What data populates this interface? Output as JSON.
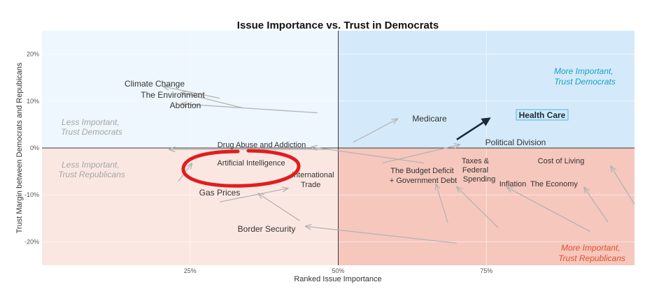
{
  "chart_data": {
    "type": "scatter",
    "title": "Issue Importance vs. Trust in Democrats",
    "xlabel": "Ranked Issue Importance",
    "ylabel": "Trust Margin between Democrats and Repubicans",
    "xlim": [
      0,
      100
    ],
    "ylim": [
      -25,
      25
    ],
    "x_ticks": [
      {
        "value": 25,
        "label": "25%"
      },
      {
        "value": 50,
        "label": "50%"
      },
      {
        "value": 75,
        "label": "75%"
      }
    ],
    "y_ticks": [
      {
        "value": 20,
        "label": "20%"
      },
      {
        "value": 10,
        "label": "10%"
      },
      {
        "value": 0,
        "label": "0%"
      },
      {
        "value": -10,
        "label": "-10%"
      },
      {
        "value": -20,
        "label": "-20%"
      }
    ],
    "quadrant_labels": {
      "top_left": [
        "Less Important,",
        "Trust Democrats"
      ],
      "top_right": [
        "More Important,",
        "Trust Democrats"
      ],
      "bottom_left": [
        "Less Important,",
        "Trust Republicans"
      ],
      "bottom_right": [
        "More Important,",
        "Trust Republicans"
      ]
    },
    "colors": {
      "top_left": "#eef7fd",
      "top_right": "#d4eafb",
      "bottom_left": "#fbe7e2",
      "bottom_right": "#f6c7bd",
      "dem_label": "#1aa0c4",
      "rep_label": "#e0502a",
      "quiet_label": "#a6a6a6",
      "arrow": "#b4b4b4",
      "highlight_arrow": "#1b2a3a",
      "circle": "#e01e1e"
    },
    "issues": [
      {
        "label": [
          "Climate Change"
        ],
        "from": [
          30,
          10.6
        ],
        "to": [
          20.5,
          13.1
        ]
      },
      {
        "label": [
          "The Environment"
        ],
        "from": [
          34,
          8.5
        ],
        "to": [
          23.5,
          11.8
        ]
      },
      {
        "label": [
          "Abortion"
        ],
        "from": [
          46.5,
          7.5
        ],
        "to": [
          23.5,
          9.4
        ]
      },
      {
        "label": [
          "Drug Abuse and Addiction"
        ],
        "from": [
          48.5,
          -0.3
        ],
        "to": [
          21.5,
          -0.3
        ]
      },
      {
        "label": [
          "Artificial Intelligence"
        ],
        "from": [
          23,
          -7.1
        ],
        "to": [
          25.3,
          -3.3
        ],
        "circled": true
      },
      {
        "label": [
          "International",
          "Trade"
        ],
        "from": [
          30,
          -11.5
        ],
        "to": [
          41.5,
          -8.6
        ]
      },
      {
        "label": [
          "Gas Prices"
        ],
        "from": [
          43.5,
          -15.5
        ],
        "to": [
          36.5,
          -9.7
        ]
      },
      {
        "label": [
          "Border Security"
        ],
        "from": [
          70,
          -20.3
        ],
        "to": [
          44.5,
          -16.7
        ]
      },
      {
        "label": [
          "Medicare"
        ],
        "from": [
          52.5,
          1.2
        ],
        "to": [
          60,
          6.2
        ]
      },
      {
        "label": [
          "Health Care"
        ],
        "from": [
          70,
          1.8
        ],
        "to": [
          75.5,
          6.3
        ],
        "highlight": true
      },
      {
        "label": [
          "Political Division"
        ],
        "from": [
          57.5,
          -3.2
        ],
        "to": [
          70.5,
          0.7
        ]
      },
      {
        "label": [
          "The Budget Deficit",
          "+ Government Debt"
        ],
        "from": [
          64.5,
          -3.2
        ],
        "to": [
          45.5,
          0.2
        ]
      },
      {
        "label": [
          "Taxes &",
          "Federal",
          "Spending"
        ],
        "from": [
          68.5,
          -16
        ],
        "to": [
          66.5,
          -7.7
        ]
      },
      {
        "label": [
          "Inflation"
        ],
        "from": [
          77,
          -17
        ],
        "to": [
          70,
          -8.3
        ]
      },
      {
        "label": [
          "The Economy"
        ],
        "from": [
          92.5,
          -17.8
        ],
        "to": [
          78.5,
          -8.4
        ]
      },
      {
        "label": [
          "Cost of Living"
        ],
        "from": [
          95.5,
          -15.8
        ],
        "to": [
          91.5,
          -8.4
        ]
      },
      {
        "label": [
          "Cost of Living"
        ],
        "from": [
          100,
          -12
        ],
        "to": [
          96,
          -3.9
        ]
      }
    ]
  }
}
